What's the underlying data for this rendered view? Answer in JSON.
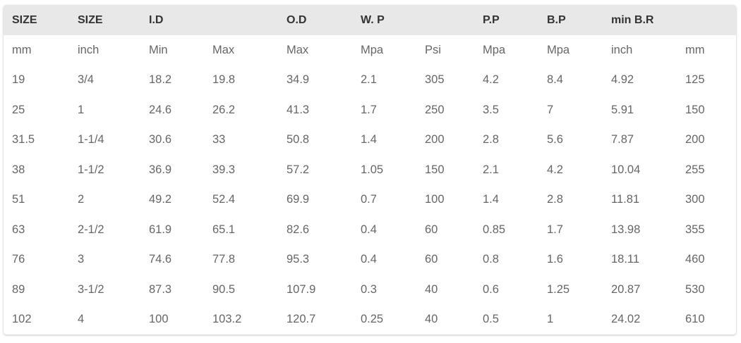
{
  "header": [
    "SIZE",
    "SIZE",
    "I.D",
    "",
    "O.D",
    "W. P",
    "",
    "P.P",
    "B.P",
    "min B.R",
    ""
  ],
  "units": [
    "mm",
    "inch",
    "Min",
    "Max",
    "Max",
    "Mpa",
    "Psi",
    "Mpa",
    "Mpa",
    "inch",
    "mm"
  ],
  "rows": [
    [
      "19",
      "3/4",
      "18.2",
      "19.8",
      "34.9",
      "2.1",
      "305",
      "4.2",
      "8.4",
      "4.92",
      "125"
    ],
    [
      "25",
      "1",
      "24.6",
      "26.2",
      "41.3",
      "1.7",
      "250",
      "3.5",
      "7",
      "5.91",
      "150"
    ],
    [
      "31.5",
      "1-1/4",
      "30.6",
      "33",
      "50.8",
      "1.4",
      "200",
      "2.8",
      "5.6",
      "7.87",
      "200"
    ],
    [
      "38",
      "1-1/2",
      "36.9",
      "39.3",
      "57.2",
      "1.05",
      "150",
      "2.1",
      "4.2",
      "10.04",
      "255"
    ],
    [
      "51",
      "2",
      "49.2",
      "52.4",
      "69.9",
      "0.7",
      "100",
      "1.4",
      "2.8",
      "11.81",
      "300"
    ],
    [
      "63",
      "2-1/2",
      "61.9",
      "65.1",
      "82.6",
      "0.4",
      "60",
      "0.85",
      "1.7",
      "13.98",
      "355"
    ],
    [
      "76",
      "3",
      "74.6",
      "77.8",
      "95.3",
      "0.4",
      "60",
      "0.8",
      "1.6",
      "18.11",
      "460"
    ],
    [
      "89",
      "3-1/2",
      "87.3",
      "90.5",
      "107.9",
      "0.3",
      "40",
      "0.6",
      "1.25",
      "20.87",
      "530"
    ],
    [
      "102",
      "4",
      "100",
      "103.2",
      "120.7",
      "0.25",
      "40",
      "0.5",
      "1",
      "24.02",
      "610"
    ]
  ]
}
